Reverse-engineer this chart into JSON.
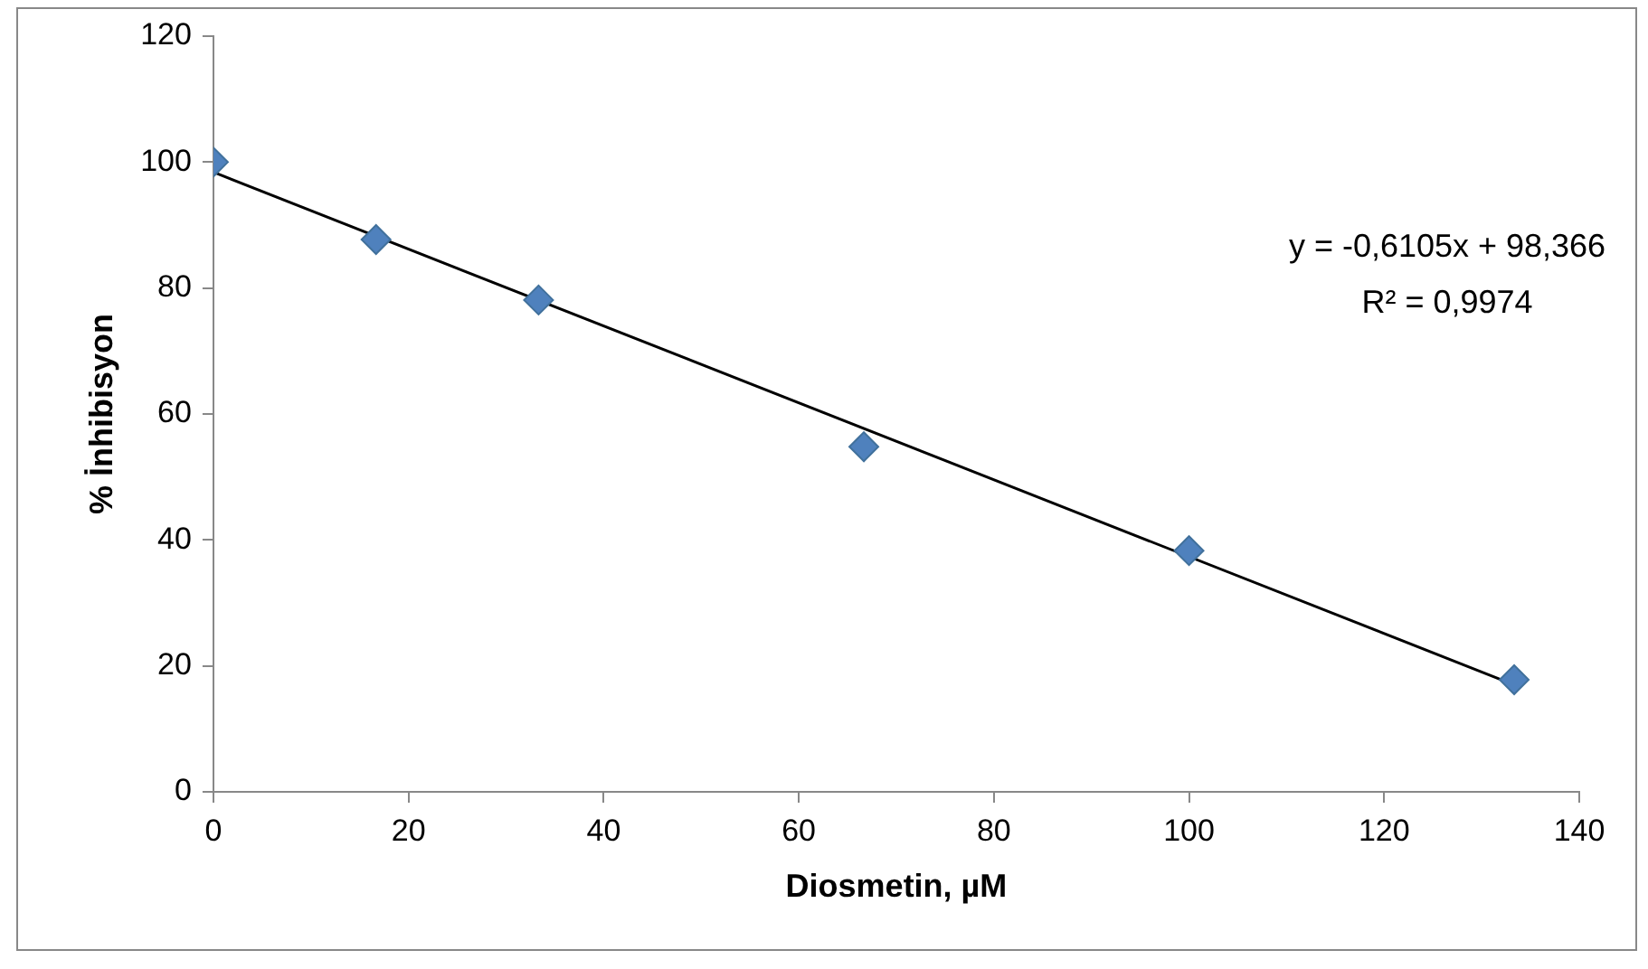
{
  "chart_data": {
    "type": "scatter",
    "xlabel": "Diosmetin, µM",
    "ylabel": "% İnhibisyon",
    "xlim": [
      0,
      140
    ],
    "xticks": [
      0,
      20,
      40,
      60,
      80,
      100,
      120,
      140
    ],
    "ylim": [
      0,
      120
    ],
    "yticks": [
      0,
      20,
      40,
      60,
      80,
      100,
      120
    ],
    "grid": false,
    "legend": false,
    "marker": "diamond",
    "series": [
      {
        "type": "scatter",
        "color": "#4f81bd",
        "x": [
          0,
          16.67,
          33.33,
          66.67,
          100,
          133.33
        ],
        "values": [
          100,
          87.7,
          78.1,
          54.8,
          38.3,
          17.8
        ]
      },
      {
        "type": "line",
        "color": "#000000",
        "marker": "none",
        "x": [
          0,
          133.33
        ],
        "values": [
          98.4,
          17
        ]
      }
    ],
    "annotations": [
      "y = -0,6105x + 98,366",
      "R² = 0,9974"
    ]
  }
}
